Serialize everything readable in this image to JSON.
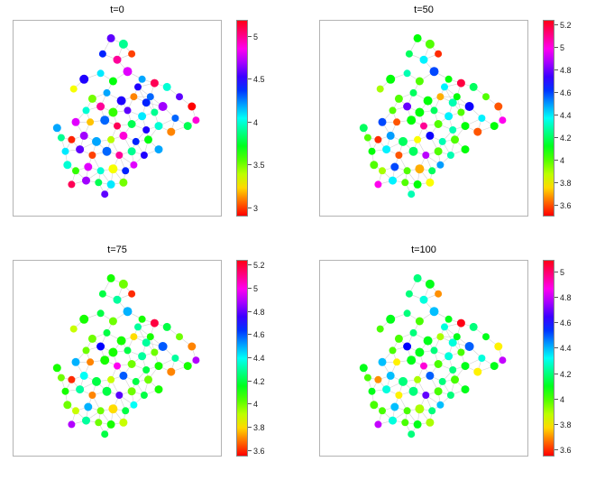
{
  "figure": {
    "background": "#ffffff",
    "colormap": "hsv",
    "edge_color": "#d2d2d2",
    "axes_border_color": "#b3b3b3"
  },
  "network": {
    "nodes_format": "x_pct_from_left, y_pct_from_top, marker_radius_px",
    "edge_distance_threshold": 9,
    "nodes": [
      [
        47,
        9,
        4.5
      ],
      [
        53,
        12,
        5
      ],
      [
        43,
        17,
        4
      ],
      [
        50,
        20,
        4.5
      ],
      [
        57,
        17,
        4
      ],
      [
        34,
        30,
        5
      ],
      [
        42,
        27,
        4
      ],
      [
        48,
        31,
        4.5
      ],
      [
        55,
        26,
        5
      ],
      [
        62,
        30,
        4
      ],
      [
        68,
        32,
        4.5
      ],
      [
        29,
        35,
        4
      ],
      [
        74,
        34,
        4.5
      ],
      [
        80,
        39,
        4
      ],
      [
        86,
        44,
        4.5
      ],
      [
        78,
        50,
        4
      ],
      [
        84,
        54,
        4.5
      ],
      [
        72,
        44,
        5
      ],
      [
        88,
        51,
        4
      ],
      [
        38,
        40,
        4.5
      ],
      [
        45,
        37,
        4
      ],
      [
        52,
        41,
        5
      ],
      [
        58,
        39,
        4
      ],
      [
        64,
        42,
        4.5
      ],
      [
        35,
        46,
        4
      ],
      [
        42,
        44,
        4.5
      ],
      [
        48,
        47,
        5
      ],
      [
        55,
        46,
        4
      ],
      [
        62,
        49,
        4.5
      ],
      [
        68,
        47,
        4
      ],
      [
        30,
        52,
        4.5
      ],
      [
        37,
        52,
        4
      ],
      [
        44,
        51,
        5
      ],
      [
        50,
        54,
        4
      ],
      [
        57,
        53,
        4.5
      ],
      [
        64,
        56,
        4
      ],
      [
        70,
        54,
        4.5
      ],
      [
        28,
        61,
        4
      ],
      [
        34,
        59,
        4.5
      ],
      [
        40,
        62,
        5
      ],
      [
        47,
        61,
        4
      ],
      [
        53,
        59,
        4.5
      ],
      [
        59,
        62,
        4
      ],
      [
        65,
        61,
        4.5
      ],
      [
        25,
        67,
        4
      ],
      [
        32,
        66,
        4.5
      ],
      [
        38,
        69,
        4
      ],
      [
        45,
        67,
        5
      ],
      [
        51,
        69,
        4
      ],
      [
        57,
        67,
        4.5
      ],
      [
        63,
        69,
        4
      ],
      [
        70,
        66,
        4.5
      ],
      [
        30,
        77,
        4
      ],
      [
        36,
        75,
        4.5
      ],
      [
        42,
        77,
        4
      ],
      [
        48,
        76,
        5
      ],
      [
        54,
        77,
        4
      ],
      [
        35,
        82,
        4.5
      ],
      [
        41,
        83,
        4
      ],
      [
        47,
        84,
        4.5
      ],
      [
        28,
        84,
        4
      ],
      [
        53,
        83,
        4.5
      ],
      [
        44,
        89,
        4
      ],
      [
        21,
        55,
        4.5
      ],
      [
        23,
        60,
        4
      ],
      [
        66,
        39,
        4
      ],
      [
        76,
        57,
        4.5
      ],
      [
        60,
        34,
        4
      ],
      [
        26,
        74,
        4.5
      ],
      [
        58,
        74,
        4
      ]
    ]
  },
  "chart_data": [
    {
      "type": "scatter",
      "title": "t=0",
      "vmin": 2.9,
      "vmax": 5.2,
      "colorbar_ticks": [
        3,
        3.5,
        4,
        4.5,
        5
      ],
      "values": [
        4.6,
        3.9,
        4.4,
        5.0,
        3.0,
        4.5,
        4.1,
        3.7,
        4.8,
        4.2,
        5.1,
        3.3,
        4.0,
        4.6,
        2.9,
        4.3,
        3.8,
        4.7,
        4.9,
        3.5,
        4.2,
        4.5,
        3.1,
        4.4,
        4.0,
        5.0,
        3.6,
        4.6,
        4.1,
        3.9,
        4.8,
        3.2,
        4.3,
        5.1,
        3.8,
        4.5,
        4.0,
        2.95,
        4.7,
        4.2,
        3.4,
        4.9,
        4.4,
        3.7,
        4.1,
        4.6,
        3.0,
        4.3,
        5.0,
        3.9,
        4.5,
        4.2,
        3.6,
        4.8,
        4.0,
        3.3,
        4.4,
        4.7,
        3.8,
        4.1,
        5.1,
        3.5,
        4.6,
        4.2,
        3.9,
        4.3,
        3.1,
        4.5,
        4.0,
        4.8
      ]
    },
    {
      "type": "scatter",
      "title": "t=50",
      "vmin": 3.5,
      "vmax": 5.25,
      "colorbar_ticks": [
        3.6,
        3.8,
        4,
        4.2,
        4.4,
        4.6,
        4.8,
        5,
        5.2
      ],
      "values": [
        4.1,
        4.0,
        4.2,
        4.4,
        3.55,
        4.1,
        4.3,
        4.0,
        4.6,
        4.1,
        5.2,
        3.9,
        4.2,
        4.0,
        3.6,
        4.4,
        4.1,
        4.7,
        5.0,
        4.0,
        4.2,
        4.1,
        3.7,
        4.3,
        4.0,
        4.8,
        4.1,
        4.2,
        4.4,
        4.0,
        4.6,
        3.6,
        4.1,
        5.1,
        4.0,
        4.3,
        4.1,
        3.55,
        4.5,
        4.2,
        3.8,
        4.7,
        4.3,
        4.0,
        4.1,
        4.4,
        3.6,
        4.2,
        4.9,
        4.0,
        4.3,
        4.1,
        3.9,
        4.6,
        4.0,
        3.7,
        4.2,
        4.4,
        4.0,
        4.1,
        5.0,
        3.8,
        4.3,
        4.2,
        4.0,
        4.1,
        3.6,
        4.4,
        4.0,
        4.5
      ]
    },
    {
      "type": "scatter",
      "title": "t=75",
      "vmin": 3.55,
      "vmax": 5.25,
      "colorbar_ticks": [
        3.6,
        3.8,
        4,
        4.2,
        4.4,
        4.6,
        4.8,
        5,
        5.2
      ],
      "values": [
        4.1,
        4.0,
        4.2,
        4.3,
        3.6,
        4.1,
        4.2,
        4.0,
        4.5,
        4.1,
        5.2,
        3.9,
        4.2,
        4.0,
        3.7,
        4.3,
        4.1,
        4.6,
        4.9,
        4.0,
        4.2,
        4.1,
        3.8,
        4.3,
        4.0,
        4.7,
        4.1,
        4.2,
        4.3,
        4.0,
        4.5,
        3.7,
        4.1,
        5.0,
        4.0,
        4.2,
        4.1,
        3.6,
        4.4,
        4.2,
        3.9,
        4.6,
        4.2,
        4.0,
        4.1,
        4.3,
        3.7,
        4.2,
        4.8,
        4.0,
        4.2,
        4.1,
        3.9,
        4.5,
        4.0,
        3.8,
        4.2,
        4.3,
        4.0,
        4.1,
        4.9,
        3.9,
        4.2,
        4.1,
        4.0,
        4.1,
        3.7,
        4.3,
        4.0,
        4.4
      ]
    },
    {
      "type": "scatter",
      "title": "t=100",
      "vmin": 3.55,
      "vmax": 5.1,
      "colorbar_ticks": [
        3.6,
        3.8,
        4,
        4.2,
        4.4,
        4.6,
        4.8,
        5
      ],
      "values": [
        4.2,
        4.1,
        4.2,
        4.3,
        3.7,
        4.1,
        4.2,
        4.0,
        4.4,
        4.1,
        5.1,
        4.0,
        4.2,
        4.1,
        3.8,
        4.3,
        4.1,
        4.5,
        4.8,
        4.0,
        4.2,
        4.1,
        3.9,
        4.3,
        4.0,
        4.6,
        4.1,
        4.2,
        4.3,
        4.0,
        4.4,
        3.8,
        4.1,
        4.9,
        4.0,
        4.2,
        4.1,
        3.7,
        4.4,
        4.2,
        3.9,
        4.5,
        4.2,
        4.0,
        4.1,
        4.3,
        3.8,
        4.2,
        4.7,
        4.0,
        4.2,
        4.1,
        4.0,
        4.4,
        4.0,
        3.9,
        4.2,
        4.3,
        4.0,
        4.1,
        4.8,
        3.9,
        4.2,
        4.1,
        4.0,
        4.1,
        3.8,
        4.3,
        4.0,
        4.4
      ]
    }
  ]
}
